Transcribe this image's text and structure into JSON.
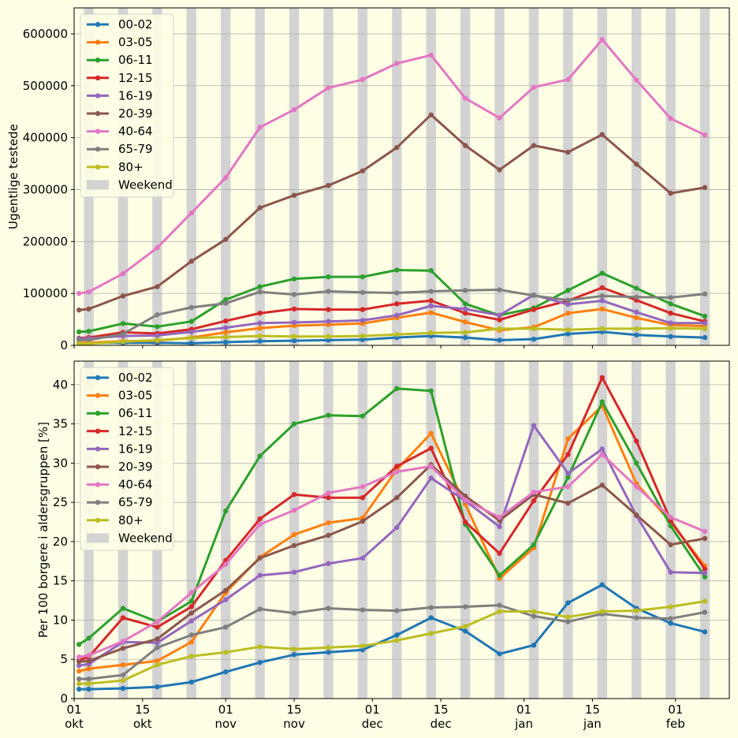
{
  "x_axis": {
    "ticks": [
      {
        "date": "2020-10-01",
        "day": "01",
        "month": "okt"
      },
      {
        "date": "2020-10-15",
        "day": "15",
        "month": "okt"
      },
      {
        "date": "2020-11-01",
        "day": "01",
        "month": "nov"
      },
      {
        "date": "2020-11-15",
        "day": "15",
        "month": "nov"
      },
      {
        "date": "2020-12-01",
        "day": "01",
        "month": "dec"
      },
      {
        "date": "2020-12-15",
        "day": "15",
        "month": "dec"
      },
      {
        "date": "2021-01-01",
        "day": "01",
        "month": "jan"
      },
      {
        "date": "2021-01-15",
        "day": "15",
        "month": "jan"
      },
      {
        "date": "2021-02-01",
        "day": "01",
        "month": "feb"
      }
    ],
    "xlim": [
      "2020-10-01",
      "2021-02-12"
    ]
  },
  "colors": {
    "00-02": "#1f77b4",
    "03-05": "#ff7f0e",
    "06-11": "#2ca02c",
    "12-15": "#d62728",
    "16-19": "#9467bd",
    "20-39": "#8c564b",
    "40-64": "#e377c2",
    "65-79": "#7f7f7f",
    "80+": "#bcbd22",
    "weekend": "#d3d3d3",
    "background": "#ffffe6",
    "grid": "#b0b0b0"
  },
  "chart_data": [
    {
      "type": "line",
      "ylabel": "Ugentlige testede",
      "ylim": [
        0,
        650000
      ],
      "yticks": [
        0,
        100000,
        200000,
        300000,
        400000,
        500000,
        600000
      ],
      "grid": true,
      "legend_position": "top-left",
      "weekend_label": "Weekend",
      "x": [
        "2020-10-02",
        "2020-10-04",
        "2020-10-11",
        "2020-10-18",
        "2020-10-25",
        "2020-11-01",
        "2020-11-08",
        "2020-11-15",
        "2020-11-22",
        "2020-11-29",
        "2020-12-06",
        "2020-12-13",
        "2020-12-20",
        "2020-12-27",
        "2021-01-03",
        "2021-01-10",
        "2021-01-17",
        "2021-01-24",
        "2021-01-31",
        "2021-02-07"
      ],
      "series": [
        {
          "name": "00-02",
          "values": [
            4000,
            4500,
            5000,
            5000,
            4000,
            6000,
            8000,
            9000,
            10000,
            11000,
            15000,
            18000,
            15000,
            10000,
            12000,
            22000,
            26000,
            20000,
            17000,
            15000
          ]
        },
        {
          "name": "03-05",
          "values": [
            5000,
            5000,
            8000,
            9000,
            15000,
            25000,
            33000,
            38000,
            40000,
            42000,
            53000,
            63000,
            45000,
            29000,
            35000,
            62000,
            70000,
            53000,
            39000,
            37000
          ]
        },
        {
          "name": "06-11",
          "values": [
            26000,
            27000,
            42000,
            36000,
            46000,
            88000,
            113000,
            128000,
            132000,
            132000,
            145000,
            144000,
            80000,
            58000,
            72000,
            106000,
            139000,
            110000,
            80000,
            56000
          ]
        },
        {
          "name": "12-15",
          "values": [
            14000,
            15000,
            25000,
            23000,
            31000,
            47000,
            62000,
            70000,
            69000,
            69000,
            80000,
            86000,
            62000,
            49000,
            69000,
            86000,
            111000,
            87000,
            62000,
            46000
          ]
        },
        {
          "name": "16-19",
          "values": [
            13000,
            13000,
            18000,
            19000,
            26000,
            34000,
            43000,
            44000,
            46000,
            48000,
            58000,
            76000,
            70000,
            58000,
            97000,
            79000,
            86000,
            64000,
            43000,
            43000
          ]
        },
        {
          "name": "20-39",
          "values": [
            68000,
            70000,
            95000,
            113000,
            162000,
            204000,
            265000,
            289000,
            308000,
            336000,
            381000,
            444000,
            385000,
            338000,
            385000,
            372000,
            406000,
            349000,
            293000,
            304000
          ]
        },
        {
          "name": "40-64",
          "values": [
            100000,
            103000,
            138000,
            188000,
            255000,
            323000,
            420000,
            454000,
            496000,
            512000,
            543000,
            559000,
            476000,
            438000,
            497000,
            512000,
            589000,
            511000,
            437000,
            405000
          ]
        },
        {
          "name": "65-79",
          "values": [
            10000,
            10000,
            22000,
            59000,
            73000,
            81000,
            103000,
            98000,
            104000,
            102000,
            101000,
            104000,
            106000,
            107000,
            96000,
            87000,
            95000,
            93000,
            92000,
            99000
          ]
        },
        {
          "name": "80+",
          "values": [
            3000,
            3000,
            7000,
            10000,
            14000,
            16000,
            18000,
            17000,
            17000,
            18000,
            21000,
            24000,
            25000,
            32000,
            32000,
            30000,
            32000,
            32000,
            33000,
            32000
          ]
        }
      ]
    },
    {
      "type": "line",
      "ylabel": "Per 100 borgere i aldersgruppen [%]",
      "ylim": [
        0,
        43
      ],
      "yticks": [
        0,
        5,
        10,
        15,
        20,
        25,
        30,
        35,
        40
      ],
      "grid": true,
      "legend_position": "top-left",
      "weekend_label": "Weekend",
      "x": [
        "2020-10-02",
        "2020-10-04",
        "2020-10-11",
        "2020-10-18",
        "2020-10-25",
        "2020-11-01",
        "2020-11-08",
        "2020-11-15",
        "2020-11-22",
        "2020-11-29",
        "2020-12-06",
        "2020-12-13",
        "2020-12-20",
        "2020-12-27",
        "2021-01-03",
        "2021-01-10",
        "2021-01-17",
        "2021-01-24",
        "2021-01-31",
        "2021-02-07"
      ],
      "series": [
        {
          "name": "00-02",
          "values": [
            1.2,
            1.2,
            1.3,
            1.5,
            2.1,
            3.4,
            4.6,
            5.6,
            5.9,
            6.2,
            8.1,
            10.3,
            8.6,
            5.7,
            6.8,
            12.2,
            14.5,
            11.5,
            9.6,
            8.5
          ]
        },
        {
          "name": "03-05",
          "values": [
            3.5,
            3.8,
            4.3,
            4.8,
            7.2,
            13.5,
            18.0,
            20.9,
            22.4,
            23.0,
            29.2,
            33.8,
            24.8,
            15.3,
            19.2,
            33.1,
            37.3,
            27.4,
            22.5,
            16.9
          ]
        },
        {
          "name": "06-11",
          "values": [
            6.9,
            7.7,
            11.5,
            9.8,
            12.4,
            23.9,
            30.9,
            35.0,
            36.1,
            36.0,
            39.5,
            39.2,
            22.2,
            15.7,
            19.6,
            28.2,
            37.8,
            30.0,
            22.0,
            15.5
          ]
        },
        {
          "name": "12-15",
          "values": [
            4.9,
            5.3,
            10.3,
            9.1,
            11.7,
            17.6,
            22.9,
            26.0,
            25.6,
            25.6,
            29.6,
            31.9,
            22.5,
            18.5,
            25.2,
            31.1,
            40.9,
            32.8,
            22.7,
            16.5
          ]
        },
        {
          "name": "16-19",
          "values": [
            4.2,
            4.4,
            7.2,
            7.1,
            9.9,
            12.6,
            15.7,
            16.1,
            17.2,
            17.9,
            21.8,
            28.1,
            25.2,
            21.9,
            34.8,
            28.7,
            31.8,
            23.3,
            16.1,
            16.0
          ]
        },
        {
          "name": "20-39",
          "values": [
            4.7,
            4.8,
            6.4,
            7.6,
            10.9,
            13.8,
            17.9,
            19.5,
            20.8,
            22.6,
            25.6,
            29.8,
            25.8,
            22.7,
            26.0,
            24.9,
            27.2,
            23.4,
            19.6,
            20.4
          ]
        },
        {
          "name": "40-64",
          "values": [
            5.3,
            5.5,
            7.3,
            9.8,
            13.5,
            17.1,
            22.2,
            24.0,
            26.2,
            27.0,
            28.9,
            29.6,
            25.3,
            23.1,
            26.3,
            27.0,
            31.1,
            27.0,
            23.1,
            21.3
          ]
        },
        {
          "name": "65-79",
          "values": [
            2.5,
            2.5,
            3.0,
            6.5,
            8.1,
            9.1,
            11.4,
            10.9,
            11.5,
            11.3,
            11.2,
            11.6,
            11.7,
            11.9,
            10.5,
            9.8,
            10.8,
            10.3,
            10.2,
            11.0
          ]
        },
        {
          "name": "80+",
          "values": [
            1.9,
            1.9,
            2.3,
            4.3,
            5.4,
            5.9,
            6.6,
            6.3,
            6.5,
            6.7,
            7.4,
            8.3,
            9.2,
            11.1,
            11.1,
            10.4,
            11.1,
            11.2,
            11.7,
            12.4
          ]
        }
      ]
    }
  ]
}
